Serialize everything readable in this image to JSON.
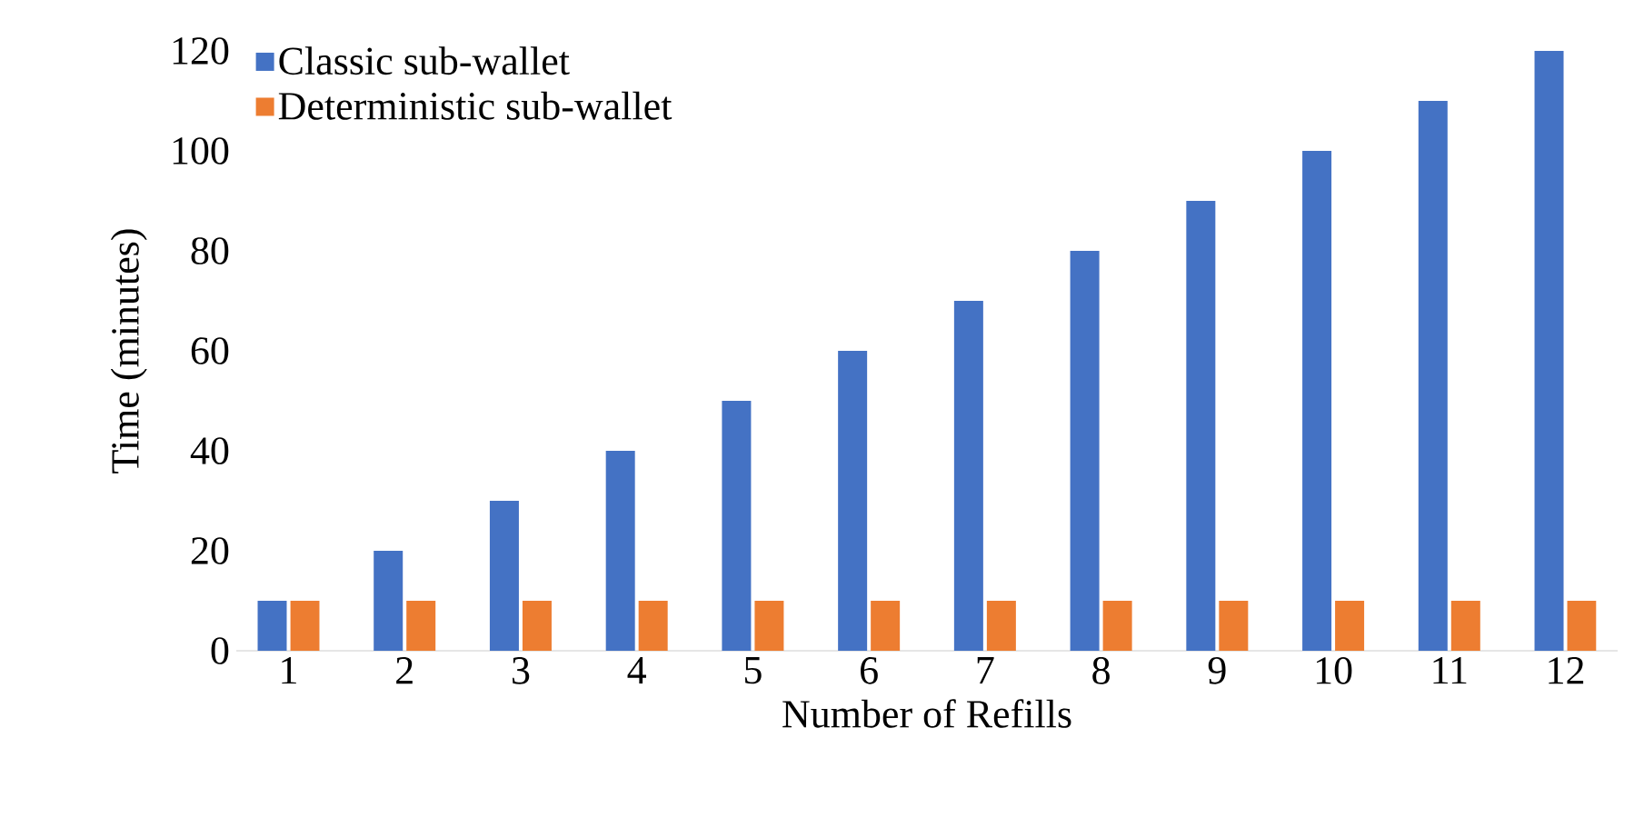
{
  "chart_data": {
    "type": "bar",
    "xlabel": "Number of Refills",
    "ylabel": "Time (minutes)",
    "categories": [
      "1",
      "2",
      "3",
      "4",
      "5",
      "6",
      "7",
      "8",
      "9",
      "10",
      "11",
      "12"
    ],
    "series": [
      {
        "name": "Classic sub-wallet",
        "color": "#4472c4",
        "values": [
          10,
          20,
          30,
          40,
          50,
          60,
          70,
          80,
          90,
          100,
          110,
          120
        ]
      },
      {
        "name": "Deterministic sub-wallet",
        "color": "#ed7d31",
        "values": [
          10,
          10,
          10,
          10,
          10,
          10,
          10,
          10,
          10,
          10,
          10,
          10
        ]
      }
    ],
    "ylim": [
      0,
      120
    ],
    "yticks": [
      0,
      20,
      40,
      60,
      80,
      100,
      120
    ],
    "legend": "top left"
  }
}
